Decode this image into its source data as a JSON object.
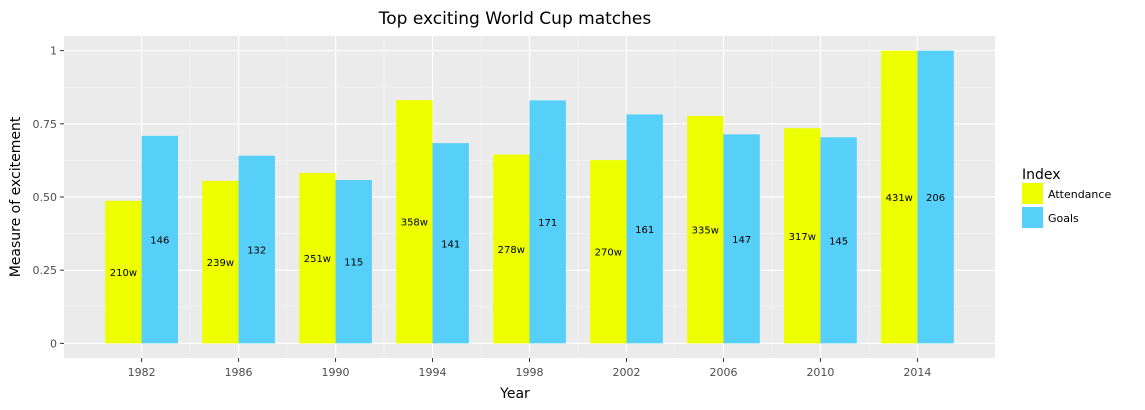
{
  "chart_data": {
    "type": "bar",
    "title": "Top exciting World Cup matches",
    "xlabel": "Year",
    "ylabel": "Measure of excitement",
    "categories": [
      "1982",
      "1986",
      "1990",
      "1994",
      "1998",
      "2002",
      "2006",
      "2010",
      "2014"
    ],
    "yticks": [
      0,
      0.25,
      0.5,
      0.75,
      1
    ],
    "ytick_labels": [
      "0",
      "0.25",
      "0.50",
      "0.75",
      "1"
    ],
    "ylim": [
      -0.05,
      1.05
    ],
    "grid": true,
    "legend": {
      "title": "Index",
      "position": "right"
    },
    "series": [
      {
        "name": "Attendance",
        "color": "#EEFF00",
        "values": [
          0.487,
          0.555,
          0.582,
          0.831,
          0.645,
          0.626,
          0.777,
          0.735,
          1.0
        ],
        "labels": [
          "210w",
          "239w",
          "251w",
          "358w",
          "278w",
          "270w",
          "335w",
          "317w",
          "431w"
        ]
      },
      {
        "name": "Goals",
        "color": "#56CFF9",
        "values": [
          0.709,
          0.641,
          0.558,
          0.684,
          0.83,
          0.782,
          0.714,
          0.704,
          1.0
        ],
        "labels": [
          "146",
          "132",
          "115",
          "141",
          "171",
          "161",
          "147",
          "145",
          "206"
        ]
      }
    ]
  }
}
